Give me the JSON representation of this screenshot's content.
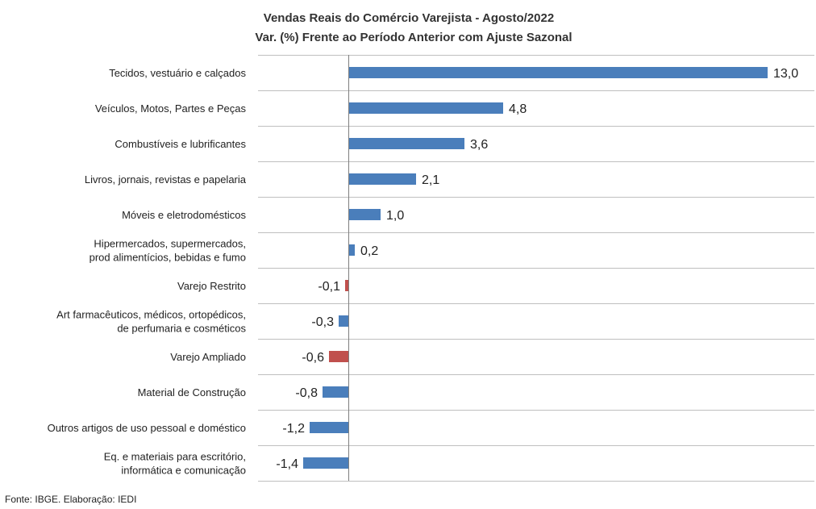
{
  "chart_data": {
    "type": "bar",
    "orientation": "horizontal",
    "title": "Vendas Reais do Comércio Varejista - Agosto/2022",
    "subtitle": "Var. (%) Frente ao Período Anterior com Ajuste Sazonal",
    "categories": [
      [
        "Tecidos, vestuário e calçados"
      ],
      [
        "Veículos, Motos, Partes e Peças"
      ],
      [
        "Combustíveis e lubrificantes"
      ],
      [
        "Livros, jornais, revistas e papelaria"
      ],
      [
        "Móveis e eletrodomésticos"
      ],
      [
        "Hipermercados, supermercados,",
        "prod alimentícios, bebidas e fumo"
      ],
      [
        "Varejo Restrito"
      ],
      [
        "Art farmacêuticos, médicos, ortopédicos,",
        "de perfumaria e cosméticos"
      ],
      [
        "Varejo Ampliado"
      ],
      [
        "Material de Construção"
      ],
      [
        "Outros artigos de uso pessoal e doméstico"
      ],
      [
        "Eq. e materiais para escritório,",
        "informática e comunicação"
      ]
    ],
    "values": [
      13.0,
      4.8,
      3.6,
      2.1,
      1.0,
      0.2,
      -0.1,
      -0.3,
      -0.6,
      -0.8,
      -1.2,
      -1.4
    ],
    "value_labels": [
      "13,0",
      "4,8",
      "3,6",
      "2,1",
      "1,0",
      "0,2",
      "-0,1",
      "-0,3",
      "-0,6",
      "-0,8",
      "-1,2",
      "-1,4"
    ],
    "highlight": [
      false,
      false,
      false,
      false,
      false,
      false,
      true,
      false,
      true,
      false,
      false,
      false
    ],
    "xlim": [
      -1.4,
      13.0
    ],
    "grid": true,
    "legend": "none",
    "colors": {
      "bar": "#4a7ebb",
      "highlight": "#c0504d",
      "grid": "#bfbfbf",
      "axis": "#7f7f7f"
    }
  },
  "source": "Fonte: IBGE. Elaboração: IEDI"
}
